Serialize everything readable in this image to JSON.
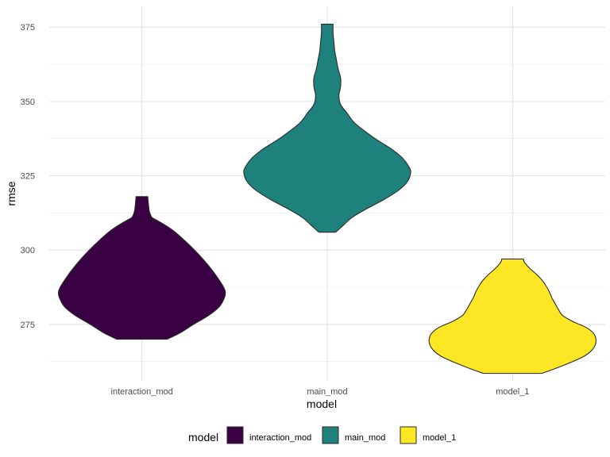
{
  "chart_data": {
    "type": "violin",
    "xlabel": "model",
    "ylabel": "rmse",
    "categories": [
      "interaction_mod",
      "main_mod",
      "model_1"
    ],
    "ylim": [
      256,
      382
    ],
    "y_ticks": [
      275,
      300,
      325,
      350,
      375
    ],
    "grid": true,
    "legend": {
      "title": "model",
      "position": "bottom"
    },
    "series": [
      {
        "name": "interaction_mod",
        "color": "#440154",
        "fill": "#3a0044",
        "profile": [
          [
            270,
            0.3
          ],
          [
            272,
            0.45
          ],
          [
            275,
            0.62
          ],
          [
            278,
            0.8
          ],
          [
            281,
            0.93
          ],
          [
            284,
            0.99
          ],
          [
            286,
            1.0
          ],
          [
            288,
            0.97
          ],
          [
            291,
            0.9
          ],
          [
            294,
            0.82
          ],
          [
            297,
            0.73
          ],
          [
            300,
            0.63
          ],
          [
            303,
            0.52
          ],
          [
            306,
            0.4
          ],
          [
            308,
            0.3
          ],
          [
            310,
            0.18
          ],
          [
            311,
            0.12
          ],
          [
            313,
            0.09
          ],
          [
            315,
            0.08
          ],
          [
            318,
            0.07
          ]
        ]
      },
      {
        "name": "main_mod",
        "color": "#21908C",
        "fill": "#1f817c",
        "profile": [
          [
            306,
            0.1
          ],
          [
            308,
            0.18
          ],
          [
            311,
            0.3
          ],
          [
            314,
            0.48
          ],
          [
            317,
            0.68
          ],
          [
            320,
            0.85
          ],
          [
            323,
            0.96
          ],
          [
            326,
            1.0
          ],
          [
            328,
            0.98
          ],
          [
            331,
            0.9
          ],
          [
            334,
            0.77
          ],
          [
            337,
            0.6
          ],
          [
            340,
            0.45
          ],
          [
            343,
            0.32
          ],
          [
            346,
            0.24
          ],
          [
            349,
            0.16
          ],
          [
            352,
            0.14
          ],
          [
            355,
            0.16
          ],
          [
            358,
            0.16
          ],
          [
            361,
            0.13
          ],
          [
            364,
            0.11
          ],
          [
            367,
            0.09
          ],
          [
            370,
            0.08
          ],
          [
            373,
            0.07
          ],
          [
            376,
            0.07
          ]
        ]
      },
      {
        "name": "model_1",
        "color": "#FDE725",
        "fill": "#fde725",
        "profile": [
          [
            258.5,
            0.35
          ],
          [
            260,
            0.5
          ],
          [
            262,
            0.68
          ],
          [
            264,
            0.84
          ],
          [
            266,
            0.94
          ],
          [
            268,
            0.99
          ],
          [
            270,
            1.0
          ],
          [
            272,
            0.97
          ],
          [
            274,
            0.88
          ],
          [
            276,
            0.72
          ],
          [
            278,
            0.6
          ],
          [
            280,
            0.55
          ],
          [
            282,
            0.51
          ],
          [
            284,
            0.47
          ],
          [
            286,
            0.44
          ],
          [
            288,
            0.4
          ],
          [
            290,
            0.35
          ],
          [
            292,
            0.28
          ],
          [
            294,
            0.2
          ],
          [
            296,
            0.14
          ],
          [
            297,
            0.13
          ]
        ]
      }
    ]
  }
}
